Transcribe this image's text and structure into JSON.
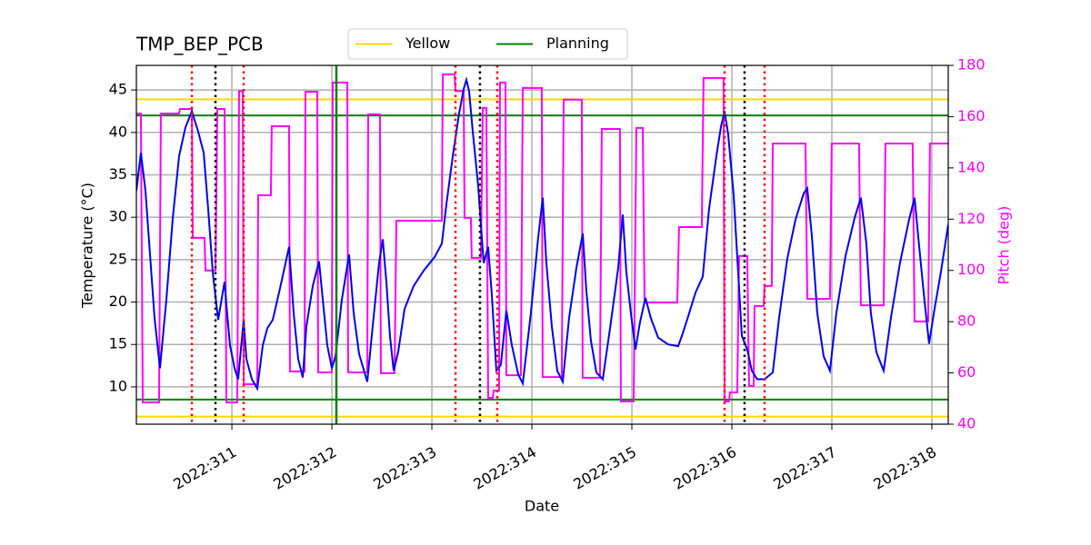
{
  "chart_data": {
    "type": "line",
    "title": "TMP_BEP_PCB",
    "x_label": "Date",
    "y_label": "Temperature (°C)",
    "y2_label": "Pitch (deg)",
    "xlim": [
      310.045,
      318.164
    ],
    "ylim": [
      5.6,
      47.9
    ],
    "y2lim": [
      40,
      180
    ],
    "xticks": [
      {
        "value": 311,
        "label": "2022:311"
      },
      {
        "value": 312,
        "label": "2022:312"
      },
      {
        "value": 313,
        "label": "2022:313"
      },
      {
        "value": 314,
        "label": "2022:314"
      },
      {
        "value": 315,
        "label": "2022:315"
      },
      {
        "value": 316,
        "label": "2022:316"
      },
      {
        "value": 317,
        "label": "2022:317"
      },
      {
        "value": 318,
        "label": "2022:318"
      }
    ],
    "yticks": [
      10,
      15,
      20,
      25,
      30,
      35,
      40,
      45
    ],
    "y2ticks": [
      40,
      60,
      80,
      100,
      120,
      140,
      160,
      180
    ],
    "y2_color": "#ff00ff",
    "grid": true,
    "legend": "upper center",
    "limits": [
      {
        "name": "Yellow",
        "color": "#ffd700",
        "values": [
          6.5,
          43.9
        ]
      },
      {
        "name": "Planning",
        "color": "#008000",
        "values": [
          8.5,
          42.0
        ]
      }
    ],
    "vlines": [
      {
        "color": "#ff0000",
        "dotted": true,
        "x": [
          310.6,
          311.118,
          313.236,
          313.654,
          315.927,
          316.327
        ]
      },
      {
        "color": "#000000",
        "dotted": true,
        "x": [
          310.836,
          313.481,
          316.127
        ]
      },
      {
        "color": "#008000",
        "dotted": false,
        "x": [
          312.045
        ]
      }
    ],
    "series": [
      {
        "color": "#ff00ff",
        "axis": "y2",
        "x": [
          310.045,
          310.09,
          310.109,
          310.272,
          310.29,
          310.472,
          310.481,
          310.6,
          310.609,
          310.727,
          310.736,
          310.836,
          310.854,
          310.927,
          310.945,
          311.054,
          311.072,
          311.109,
          311.118,
          311.254,
          311.263,
          311.39,
          311.399,
          311.572,
          311.581,
          311.727,
          311.736,
          311.854,
          311.863,
          312.0,
          312.009,
          312.154,
          312.163,
          312.354,
          312.363,
          312.481,
          312.49,
          312.627,
          312.645,
          313.1,
          313.109,
          313.227,
          313.236,
          313.318,
          313.327,
          313.39,
          313.399,
          313.49,
          313.509,
          313.545,
          313.563,
          313.609,
          313.618,
          313.672,
          313.681,
          313.736,
          313.745,
          313.89,
          313.909,
          314.099,
          314.108,
          314.299,
          314.318,
          314.499,
          314.508,
          314.681,
          314.699,
          314.881,
          314.89,
          315.018,
          315.045,
          315.109,
          315.127,
          315.454,
          315.472,
          315.699,
          315.717,
          315.917,
          315.927,
          315.972,
          315.981,
          316.054,
          316.072,
          316.154,
          316.172,
          316.218,
          316.227,
          316.318,
          316.327,
          316.399,
          316.409,
          316.736,
          316.754,
          316.981,
          316.999,
          317.272,
          317.29,
          317.518,
          317.536,
          317.808,
          317.827,
          317.963,
          317.981,
          318.163
        ],
        "values": [
          161.2,
          161.2,
          48.5,
          48.5,
          161.2,
          161.2,
          163,
          163,
          112.7,
          112.7,
          100,
          100,
          163,
          163,
          48.5,
          48.5,
          170,
          170,
          55.6,
          55.6,
          129.3,
          129.3,
          156.3,
          156.3,
          60.6,
          60.6,
          169.7,
          169.7,
          60.2,
          60.2,
          173.3,
          173.3,
          60.2,
          60.2,
          160.9,
          160.9,
          59.9,
          59.9,
          119.4,
          119.4,
          176.5,
          176.5,
          170,
          170,
          120.5,
          120.5,
          104.9,
          104.9,
          163.4,
          163.4,
          50.3,
          50.3,
          53.1,
          53.1,
          173.3,
          173.3,
          59.1,
          59.1,
          171.2,
          171.2,
          58.4,
          58.4,
          166.6,
          166.6,
          58.1,
          58.1,
          155.2,
          155.2,
          48.9,
          48.9,
          155.6,
          155.6,
          87.5,
          87.5,
          116.9,
          116.9,
          175.1,
          175.1,
          48.9,
          48.9,
          52.4,
          52.4,
          105.6,
          105.6,
          54.9,
          54.9,
          86.1,
          86.1,
          93.9,
          93.9,
          149.5,
          149.5,
          88.9,
          88.9,
          149.5,
          149.5,
          86.4,
          86.4,
          149.5,
          149.5,
          80.1,
          80.1,
          149.5,
          149.5
        ]
      },
      {
        "color": "#0000ee",
        "x": [
          310.045,
          310.09,
          310.136,
          310.227,
          310.281,
          310.345,
          310.409,
          310.472,
          310.536,
          310.6,
          310.663,
          310.718,
          310.763,
          310.809,
          310.863,
          310.927,
          310.945,
          310.981,
          311.027,
          311.063,
          311.09,
          311.118,
          311.145,
          311.2,
          311.254,
          311.309,
          311.354,
          311.409,
          311.481,
          311.572,
          311.618,
          311.663,
          311.709,
          311.745,
          311.809,
          311.872,
          311.909,
          311.954,
          312.0,
          312.036,
          312.1,
          312.172,
          312.218,
          312.272,
          312.354,
          312.418,
          312.472,
          312.509,
          312.545,
          312.581,
          312.618,
          312.663,
          312.727,
          312.818,
          312.918,
          313.027,
          313.1,
          313.145,
          313.209,
          313.272,
          313.318,
          313.345,
          313.372,
          313.409,
          313.463,
          313.518,
          313.563,
          313.6,
          313.645,
          313.69,
          313.745,
          313.8,
          313.863,
          313.909,
          313.99,
          314.063,
          314.109,
          314.145,
          314.2,
          314.254,
          314.309,
          314.372,
          314.445,
          314.509,
          314.545,
          314.59,
          314.645,
          314.709,
          314.79,
          314.863,
          314.909,
          314.945,
          314.99,
          315.036,
          315.081,
          315.136,
          315.19,
          315.263,
          315.363,
          315.463,
          315.5,
          315.563,
          315.636,
          315.709,
          315.772,
          315.845,
          315.89,
          315.927,
          315.963,
          316.018,
          316.063,
          316.1,
          316.154,
          316.2,
          316.254,
          316.327,
          316.409,
          316.472,
          316.554,
          316.636,
          316.718,
          316.754,
          316.8,
          316.854,
          316.918,
          316.981,
          317.045,
          317.136,
          317.227,
          317.29,
          317.345,
          317.39,
          317.445,
          317.518,
          317.59,
          317.681,
          317.772,
          317.827,
          317.872,
          317.927,
          317.972,
          318.027,
          318.09,
          318.163
        ],
        "values": [
          33.1,
          37.6,
          33.1,
          18.1,
          12.2,
          20.3,
          29.9,
          37.2,
          40.6,
          42.5,
          40.1,
          37.6,
          31.0,
          23.5,
          17.9,
          22.4,
          19.7,
          14.9,
          12.2,
          10.9,
          14.4,
          17.9,
          13.3,
          10.9,
          9.8,
          14.9,
          16.9,
          17.9,
          21.6,
          26.5,
          18.7,
          13.3,
          11.1,
          17.1,
          21.9,
          24.8,
          20.3,
          14.9,
          12.2,
          13.6,
          20.3,
          25.6,
          18.7,
          13.9,
          10.6,
          18.3,
          24.6,
          27.4,
          22.4,
          16.0,
          11.9,
          14.1,
          19.2,
          21.9,
          23.7,
          25.3,
          26.9,
          31.5,
          37.2,
          42.2,
          45.1,
          46.2,
          44.9,
          40.1,
          33.7,
          24.6,
          26.5,
          20.8,
          11.9,
          12.6,
          19.0,
          14.9,
          11.5,
          10.4,
          18.7,
          27.6,
          32.3,
          24.6,
          17.1,
          11.9,
          10.6,
          18.1,
          24.0,
          28.1,
          21.3,
          15.5,
          11.7,
          10.9,
          17.6,
          24.0,
          30.3,
          23.5,
          18.7,
          14.4,
          17.6,
          20.5,
          18.1,
          15.8,
          15.0,
          14.8,
          16.0,
          18.3,
          21.1,
          23.0,
          31.0,
          37.2,
          40.6,
          42.5,
          39.8,
          32.6,
          23.5,
          16.0,
          14.4,
          11.9,
          10.9,
          10.9,
          11.7,
          18.1,
          25.1,
          29.7,
          32.8,
          33.4,
          27.8,
          18.7,
          13.6,
          11.9,
          18.7,
          25.4,
          29.9,
          32.3,
          26.9,
          18.7,
          14.1,
          11.9,
          18.1,
          24.6,
          29.7,
          32.3,
          26.7,
          20.1,
          15.1,
          19.2,
          23.5,
          29.1
        ]
      }
    ]
  }
}
